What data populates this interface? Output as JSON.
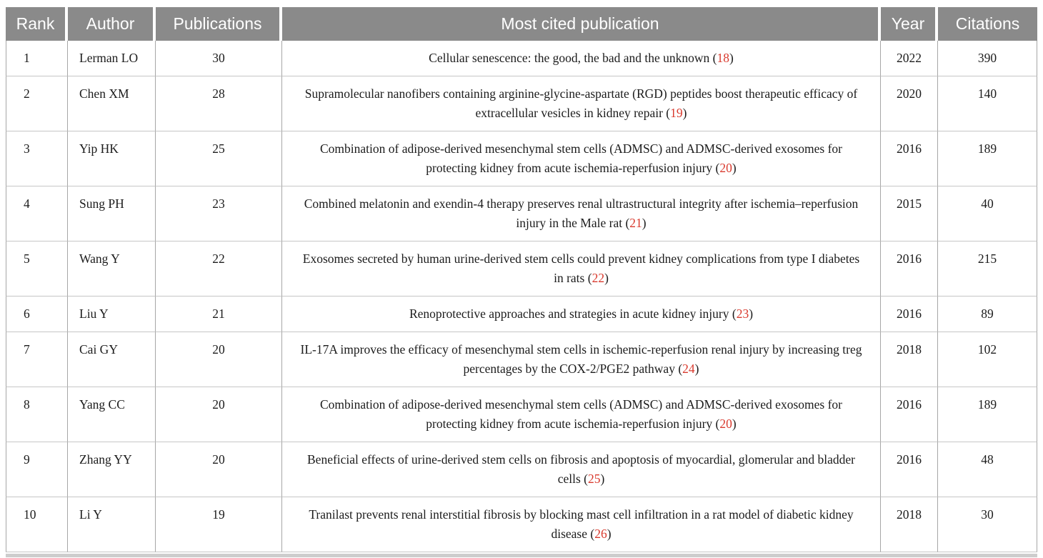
{
  "colors": {
    "header_bg": "#8a8a8a",
    "header_text": "#ffffff",
    "body_text": "#1c1c1c",
    "reference_red": "#d93a2e",
    "grid_vertical": "#a6a6a6",
    "grid_horizontal": "#c6c6c6",
    "bottom_bar": "#cdcdcd"
  },
  "table": {
    "headers": {
      "rank": "Rank",
      "author": "Author",
      "publications": "Publications",
      "most_cited": "Most cited publication",
      "year": "Year",
      "citations": "Citations"
    },
    "rows": [
      {
        "rank": "1",
        "author": "Lerman LO",
        "publications": "30",
        "title_pre": "Cellular senescence: the good, the bad and the unknown (",
        "ref": "18",
        "title_post": ")",
        "year": "2022",
        "citations": "390"
      },
      {
        "rank": "2",
        "author": "Chen XM",
        "publications": "28",
        "title_pre": "Supramolecular nanofibers containing arginine-glycine-aspartate (RGD) peptides boost therapeutic efficacy of extracellular vesicles in kidney repair (",
        "ref": "19",
        "title_post": ")",
        "year": "2020",
        "citations": "140"
      },
      {
        "rank": "3",
        "author": "Yip HK",
        "publications": "25",
        "title_pre": "Combination of adipose-derived mesenchymal stem cells (ADMSC) and ADMSC-derived exosomes for protecting kidney from acute ischemia-reperfusion injury (",
        "ref": "20",
        "title_post": ")",
        "year": "2016",
        "citations": "189"
      },
      {
        "rank": "4",
        "author": "Sung PH",
        "publications": "23",
        "title_pre": "Combined melatonin and exendin-4 therapy preserves renal ultrastructural integrity after ischemia–reperfusion injury in the Male rat (",
        "ref": "21",
        "title_post": ")",
        "year": "2015",
        "citations": "40"
      },
      {
        "rank": "5",
        "author": "Wang Y",
        "publications": "22",
        "title_pre": "Exosomes secreted by human urine-derived stem cells could prevent kidney complications from type I diabetes in rats (",
        "ref": "22",
        "title_post": ")",
        "year": "2016",
        "citations": "215"
      },
      {
        "rank": "6",
        "author": "Liu Y",
        "publications": "21",
        "title_pre": "Renoprotective approaches and strategies in acute kidney injury (",
        "ref": "23",
        "title_post": ")",
        "year": "2016",
        "citations": "89"
      },
      {
        "rank": "7",
        "author": "Cai GY",
        "publications": "20",
        "title_pre": "IL-17A improves the efficacy of mesenchymal stem cells in ischemic-reperfusion renal injury by increasing treg percentages by the COX-2/PGE2 pathway (",
        "ref": "24",
        "title_post": ")",
        "year": "2018",
        "citations": "102"
      },
      {
        "rank": "8",
        "author": "Yang CC",
        "publications": "20",
        "title_pre": "Combination of adipose-derived mesenchymal stem cells (ADMSC) and ADMSC-derived exosomes for protecting kidney from acute ischemia-reperfusion injury (",
        "ref": "20",
        "title_post": ")",
        "year": "2016",
        "citations": "189"
      },
      {
        "rank": "9",
        "author": "Zhang YY",
        "publications": "20",
        "title_pre": "Beneficial effects of urine-derived stem cells on fibrosis and apoptosis of myocardial, glomerular and bladder cells (",
        "ref": "25",
        "title_post": ")",
        "year": "2016",
        "citations": "48"
      },
      {
        "rank": "10",
        "author": "Li Y",
        "publications": "19",
        "title_pre": "Tranilast prevents renal interstitial fibrosis by blocking mast cell infiltration in a rat model of diabetic kidney disease (",
        "ref": "26",
        "title_post": ")",
        "year": "2018",
        "citations": "30"
      }
    ]
  }
}
